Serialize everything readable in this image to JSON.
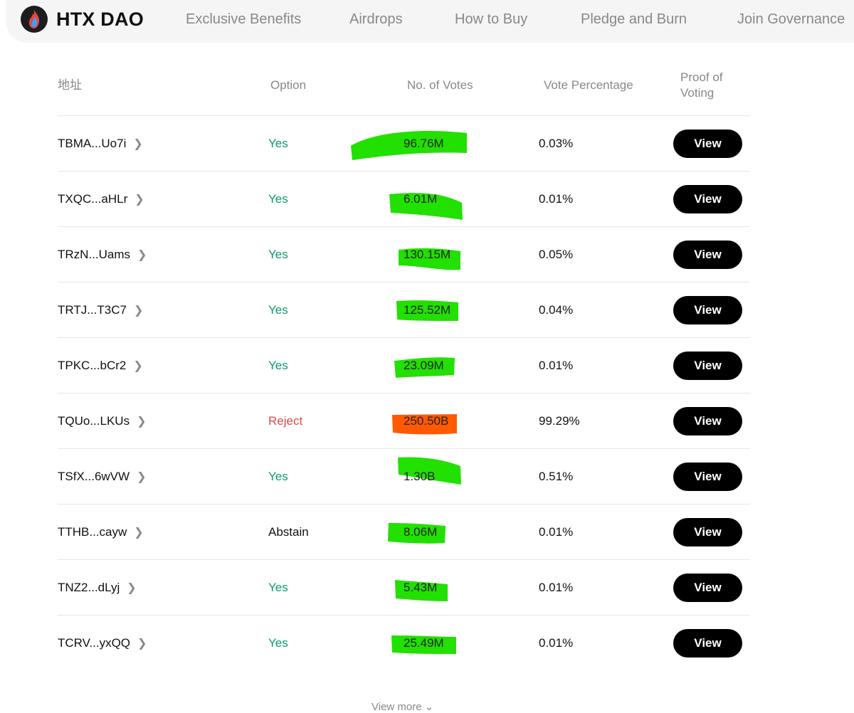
{
  "header": {
    "brand": "HTX DAO",
    "nav": [
      "Exclusive Benefits",
      "Airdrops",
      "How to Buy",
      "Pledge and Burn",
      "Join Governance"
    ]
  },
  "table": {
    "headers": {
      "address": "地址",
      "option": "Option",
      "votes": "No. of Votes",
      "percentage": "Vote Percentage",
      "proof_line1": "Proof of",
      "proof_line2": "Voting"
    },
    "view_label": "View",
    "rows": [
      {
        "address": "TBMA...Uo7i",
        "option": "Yes",
        "votes": "96.76M",
        "percentage": "0.03%"
      },
      {
        "address": "TXQC...aHLr",
        "option": "Yes",
        "votes": "6.01M",
        "percentage": "0.01%"
      },
      {
        "address": "TRzN...Uams",
        "option": "Yes",
        "votes": "130.15M",
        "percentage": "0.05%"
      },
      {
        "address": "TRTJ...T3C7",
        "option": "Yes",
        "votes": "125.52M",
        "percentage": "0.04%"
      },
      {
        "address": "TPKC...bCr2",
        "option": "Yes",
        "votes": "23.09M",
        "percentage": "0.01%"
      },
      {
        "address": "TQUo...LKUs",
        "option": "Reject",
        "votes": "250.50B",
        "percentage": "99.29%"
      },
      {
        "address": "TSfX...6wVW",
        "option": "Yes",
        "votes": "1.30B",
        "percentage": "0.51%"
      },
      {
        "address": "TTHB...cayw",
        "option": "Abstain",
        "votes": "8.06M",
        "percentage": "0.01%"
      },
      {
        "address": "TNZ2...dLyj",
        "option": "Yes",
        "votes": "5.43M",
        "percentage": "0.01%"
      },
      {
        "address": "TCRV...yxQQ",
        "option": "Yes",
        "votes": "25.49M",
        "percentage": "0.01%"
      }
    ]
  },
  "footer": {
    "view_more": "View more"
  },
  "colors": {
    "yes": "#0a9b6a",
    "reject": "#e04a4a",
    "highlight_green": "#22e000",
    "highlight_orange": "#ff5a00"
  },
  "icons": {
    "logo": "htx-flame-logo-icon",
    "row_arrow": "chevron-right-icon",
    "view_more_arrow": "chevron-down-icon"
  }
}
